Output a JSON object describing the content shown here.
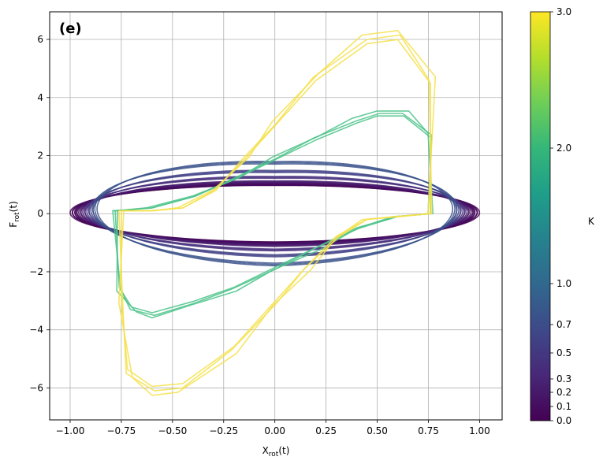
{
  "chart_data": {
    "type": "line",
    "panel_label": "(e)",
    "xlabel_main": "X",
    "xlabel_sub": "rot",
    "xlabel_suffix": "(t)",
    "ylabel_main": "F",
    "ylabel_sub": "rot",
    "ylabel_suffix": "(t)",
    "xlim": [
      -1.1,
      1.11
    ],
    "ylim": [
      -7.1,
      6.95
    ],
    "xticks": [
      -1.0,
      -0.75,
      -0.5,
      -0.25,
      0.0,
      0.25,
      0.5,
      0.75,
      1.0
    ],
    "xtick_labels": [
      "−1.00",
      "−0.75",
      "−0.50",
      "−0.25",
      "0.00",
      "0.25",
      "0.50",
      "0.75",
      "1.00"
    ],
    "yticks": [
      -6,
      -4,
      -2,
      0,
      2,
      4,
      6
    ],
    "ytick_labels": [
      "−6",
      "−4",
      "−2",
      "0",
      "2",
      "4",
      "6"
    ],
    "grid": true,
    "colorbar": {
      "label": "K",
      "colormap": "viridis",
      "range": [
        0.0,
        3.0
      ],
      "ticks": [
        0.0,
        0.1,
        0.2,
        0.3,
        0.5,
        0.7,
        1.0,
        2.0,
        3.0
      ],
      "tick_labels": [
        "0.0",
        "0.1",
        "0.2",
        "0.3",
        "0.5",
        "0.7",
        "1.0",
        "2.0",
        "3.0"
      ],
      "stops": [
        "#440154",
        "#482878",
        "#3e4989",
        "#31688e",
        "#26828e",
        "#1f9e89",
        "#35b779",
        "#6ece58",
        "#b5de2b",
        "#fde725"
      ]
    },
    "series": [
      {
        "name": "K=0.0",
        "kind": "ellipse",
        "color": "#440154",
        "amp": 1.0,
        "xmax": 1.0,
        "xmin": -1.0,
        "tilt": 0.12,
        "repeats": 3
      },
      {
        "name": "K=0.1",
        "kind": "ellipse",
        "color": "#46085c",
        "amp": 1.0,
        "xmax": 0.99,
        "xmin": -0.99,
        "tilt": 0.15,
        "repeats": 3
      },
      {
        "name": "K=0.2",
        "kind": "ellipse",
        "color": "#471164",
        "amp": 1.05,
        "xmax": 0.97,
        "xmin": -0.97,
        "tilt": 0.18,
        "repeats": 3
      },
      {
        "name": "K=0.3",
        "kind": "ellipse",
        "color": "#481b6d",
        "amp": 1.1,
        "xmax": 0.95,
        "xmin": -0.95,
        "tilt": 0.22,
        "repeats": 3
      },
      {
        "name": "K=0.5",
        "kind": "ellipse",
        "color": "#472f7d",
        "amp": 1.25,
        "xmax": 0.93,
        "xmin": -0.93,
        "tilt": 0.3,
        "repeats": 3
      },
      {
        "name": "K=0.7",
        "kind": "ellipse",
        "color": "#424186",
        "amp": 1.45,
        "xmax": 0.91,
        "xmin": -0.91,
        "tilt": 0.42,
        "repeats": 3
      },
      {
        "name": "K=1.0",
        "kind": "ellipse",
        "color": "#3b528b",
        "amp": 1.75,
        "xmax": 0.89,
        "xmin": -0.89,
        "tilt": 0.55,
        "repeats": 3
      },
      {
        "name": "K=2.0",
        "kind": "polyline",
        "color": "#4cc38a",
        "repeats": 3,
        "x": [
          -0.78,
          -0.78,
          -0.6,
          -0.4,
          -0.2,
          0.0,
          0.2,
          0.4,
          0.5,
          0.63,
          0.76,
          0.76,
          0.6,
          0.4,
          0.2,
          0.0,
          -0.2,
          -0.4,
          -0.6,
          -0.7,
          -0.76,
          -0.78
        ],
        "y": [
          0.1,
          0.1,
          0.2,
          0.6,
          1.2,
          1.9,
          2.6,
          3.2,
          3.45,
          3.45,
          2.7,
          0.0,
          -0.1,
          -0.5,
          -1.2,
          -1.9,
          -2.6,
          -3.1,
          -3.5,
          -3.3,
          -2.6,
          0.1
        ]
      },
      {
        "name": "K=3.0",
        "kind": "polyline",
        "color": "#f5e14a",
        "repeats": 3,
        "x": [
          -0.75,
          -0.6,
          -0.45,
          -0.3,
          -0.15,
          0.0,
          0.2,
          0.45,
          0.6,
          0.76,
          0.76,
          0.6,
          0.45,
          0.3,
          0.15,
          0.0,
          -0.2,
          -0.45,
          -0.6,
          -0.72,
          -0.75,
          -0.75
        ],
        "y": [
          0.1,
          0.1,
          0.2,
          0.8,
          1.9,
          3.1,
          4.7,
          6.0,
          6.15,
          4.6,
          0.0,
          -0.1,
          -0.2,
          -0.8,
          -1.9,
          -3.1,
          -4.7,
          -6.0,
          -6.1,
          -5.5,
          -3.0,
          0.1
        ]
      }
    ]
  }
}
